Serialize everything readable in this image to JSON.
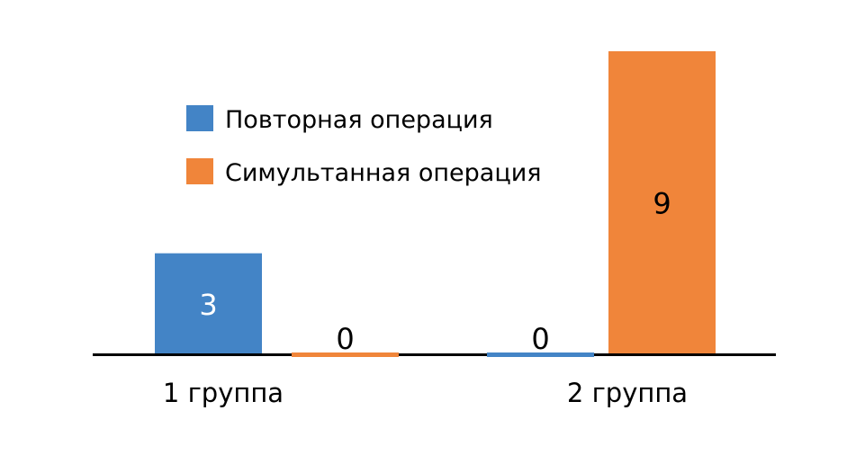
{
  "chart_data": {
    "type": "bar",
    "title": "",
    "xlabel": "",
    "ylabel": "",
    "categories": [
      "1 группа",
      "2 группа"
    ],
    "series": [
      {
        "name": "Повторная операция",
        "values": [
          3,
          0
        ],
        "color": "#4384c6"
      },
      {
        "name": "Симультанная операция",
        "values": [
          0,
          9
        ],
        "color": "#f0853a"
      }
    ],
    "ylim": [
      0,
      9
    ],
    "grid": false,
    "legend": "top-left",
    "data_labels": true
  }
}
